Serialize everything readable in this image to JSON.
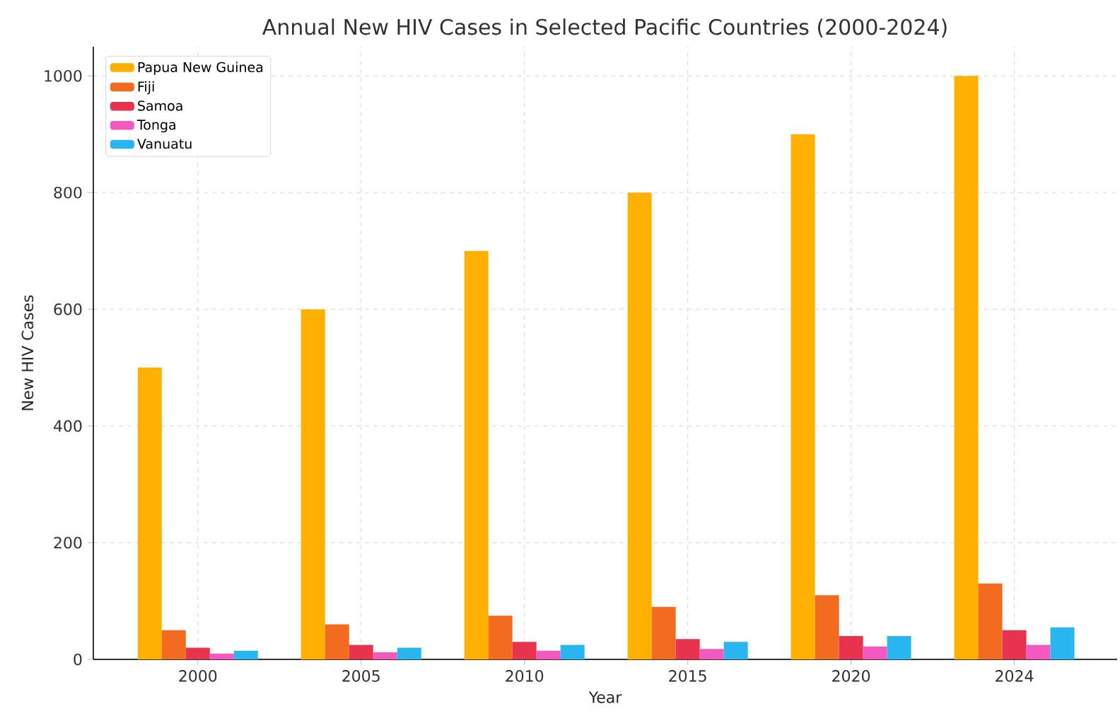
{
  "chart_data": {
    "type": "bar",
    "title": "Annual New HIV Cases in Selected Pacific Countries (2000-2024)",
    "xlabel": "Year",
    "ylabel": "New HIV Cases",
    "categories": [
      "2000",
      "2005",
      "2010",
      "2015",
      "2020",
      "2024"
    ],
    "series": [
      {
        "name": "Papua New Guinea",
        "color": "#ffb000",
        "values": [
          500,
          600,
          700,
          800,
          900,
          1000
        ]
      },
      {
        "name": "Fiji",
        "color": "#f26b21",
        "values": [
          50,
          60,
          75,
          90,
          110,
          130
        ]
      },
      {
        "name": "Samoa",
        "color": "#e8334f",
        "values": [
          20,
          25,
          30,
          35,
          40,
          50
        ]
      },
      {
        "name": "Tonga",
        "color": "#f25ac0",
        "values": [
          10,
          12,
          15,
          18,
          22,
          25
        ]
      },
      {
        "name": "Vanuatu",
        "color": "#29b6f0",
        "values": [
          15,
          20,
          25,
          30,
          40,
          55
        ]
      }
    ],
    "ylim": [
      0,
      1050
    ],
    "yticks": [
      0,
      200,
      400,
      600,
      800,
      1000
    ],
    "grid": true,
    "legend": "top left"
  }
}
